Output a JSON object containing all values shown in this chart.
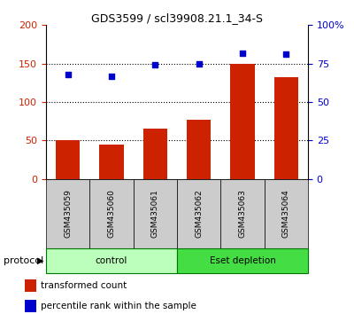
{
  "title": "GDS3599 / scl39908.21.1_34-S",
  "samples": [
    "GSM435059",
    "GSM435060",
    "GSM435061",
    "GSM435062",
    "GSM435063",
    "GSM435064"
  ],
  "bar_values": [
    50,
    45,
    65,
    77,
    150,
    132
  ],
  "scatter_values": [
    68,
    67,
    74,
    75,
    82,
    81
  ],
  "bar_color": "#cc2200",
  "scatter_color": "#0000cc",
  "left_ylim": [
    0,
    200
  ],
  "right_ylim": [
    0,
    100
  ],
  "left_yticks": [
    0,
    50,
    100,
    150,
    200
  ],
  "right_yticks": [
    0,
    25,
    50,
    75,
    100
  ],
  "right_yticklabels": [
    "0",
    "25",
    "50",
    "75",
    "100%"
  ],
  "grid_values": [
    50,
    100,
    150
  ],
  "protocol_labels": [
    "control",
    "Eset depletion"
  ],
  "protocol_colors": [
    "#bbffbb",
    "#44dd44"
  ],
  "protocol_border_color": "#007700",
  "sample_box_color": "#cccccc",
  "legend_bar_label": "transformed count",
  "legend_scatter_label": "percentile rank within the sample",
  "protocol_text": "protocol",
  "fig_width": 4.0,
  "fig_height": 3.54,
  "dpi": 100
}
